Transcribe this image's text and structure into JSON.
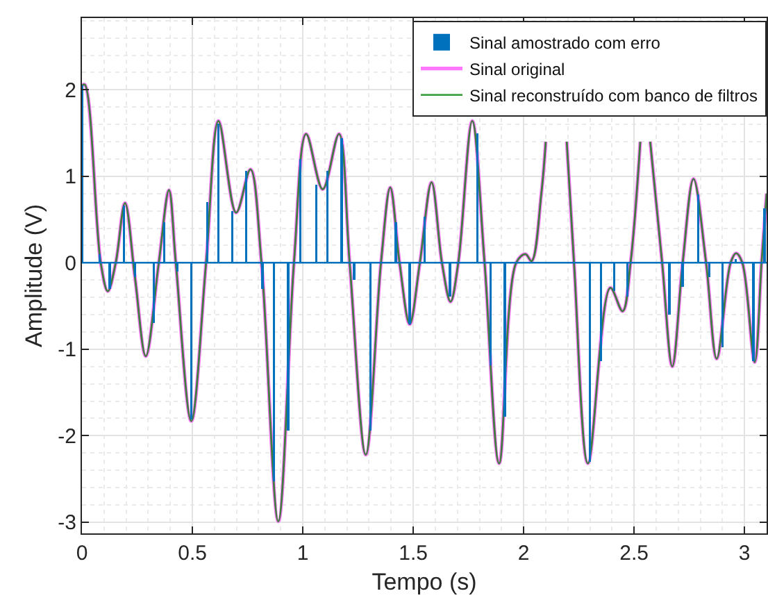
{
  "chart_data": {
    "type": "line",
    "xlabel": "Tempo (s)",
    "ylabel": "Amplitude (V)",
    "xlim": [
      0,
      3.1
    ],
    "xticks": [
      0,
      0.5,
      1,
      1.5,
      2,
      2.5,
      3
    ],
    "ylim": [
      -3.13,
      2.83
    ],
    "yticks": [
      -3,
      -2,
      -1,
      0,
      1,
      2
    ],
    "grid": true,
    "legend": "top right",
    "marker": "none",
    "line_style": "solid",
    "ref_lines": [
      {
        "axis": "y",
        "value": 0,
        "color": "#0072bd"
      }
    ],
    "series": [
      {
        "name": "Sinal amostrado com erro",
        "type": "bar",
        "color": "#0072bd",
        "x": [
          0,
          0.08,
          0.126,
          0.19,
          0.24,
          0.325,
          0.373,
          0.432,
          0.495,
          0.568,
          0.618,
          0.681,
          0.744,
          0.818,
          0.87,
          0.933,
          0.989,
          1.061,
          1.111,
          1.176,
          1.233,
          1.306,
          1.421,
          1.484,
          1.551,
          1.667,
          1.79,
          1.851,
          1.914,
          2.1,
          2.16,
          2.3,
          2.35,
          2.41,
          2.47,
          2.54,
          2.66,
          2.72,
          2.79,
          2.84,
          2.9,
          2.96,
          3.04,
          3.09
        ],
        "values": [
          2.05,
          0.1,
          -0.3,
          0.66,
          -0.17,
          -0.7,
          0.47,
          -0.1,
          -1.81,
          0.7,
          1.61,
          0.6,
          1.06,
          -0.3,
          -2.53,
          -1.94,
          1.2,
          0.9,
          1.06,
          1.44,
          -0.2,
          -1.94,
          0.47,
          -0.71,
          0.53,
          -0.39,
          1.5,
          -1.19,
          -1.78,
          null,
          null,
          -2.3,
          -1.14,
          -0.33,
          -0.39,
          null,
          -0.6,
          -0.28,
          0.79,
          -0.17,
          -0.98,
          0.04,
          -1.14,
          0.63
        ]
      },
      {
        "name": "Sinal original",
        "color": "#ff77ff",
        "x": [
          0,
          0.013,
          0.085,
          0.117,
          0.153,
          0.195,
          0.24,
          0.289,
          0.348,
          0.394,
          0.425,
          0.495,
          0.562,
          0.618,
          0.698,
          0.763,
          0.813,
          0.889,
          0.96,
          1.015,
          1.09,
          1.164,
          1.212,
          1.285,
          1.354,
          1.396,
          1.438,
          1.484,
          1.53,
          1.583,
          1.63,
          1.669,
          1.704,
          1.767,
          1.823,
          1.889,
          1.966,
          2.008,
          2.036,
          2.08,
          2.1,
          2.15,
          2.195,
          2.228,
          2.291,
          2.392,
          2.448,
          2.484,
          2.528,
          2.55,
          2.573,
          2.627,
          2.673,
          2.72,
          2.769,
          2.826,
          2.874,
          2.937,
          2.962,
          2.99,
          3.046,
          3.077,
          3.1
        ],
        "values": [
          2.05,
          2.06,
          0,
          -0.33,
          0,
          0.69,
          -0.17,
          -1.08,
          0,
          0.84,
          0,
          -1.83,
          0,
          1.64,
          0.58,
          1.08,
          0,
          -2.99,
          0,
          1.49,
          0.85,
          1.49,
          0,
          -2.22,
          0,
          0.87,
          0,
          -0.71,
          0,
          0.93,
          0,
          -0.45,
          0,
          1.64,
          0,
          -2.32,
          0,
          0.1,
          0.02,
          0.8,
          1.4,
          null,
          1.4,
          0,
          -2.32,
          -0.29,
          -0.56,
          0,
          1.4,
          null,
          1.4,
          0,
          -1.2,
          0,
          0.97,
          0,
          -1.11,
          0,
          0.11,
          0,
          -1.15,
          0,
          0.8
        ]
      },
      {
        "name": "Sinal reconstruído com banco de filtros",
        "color": "#008000",
        "x": [
          0,
          0.013,
          0.085,
          0.117,
          0.153,
          0.195,
          0.24,
          0.289,
          0.348,
          0.394,
          0.425,
          0.495,
          0.562,
          0.618,
          0.698,
          0.763,
          0.813,
          0.889,
          0.96,
          1.015,
          1.09,
          1.164,
          1.212,
          1.285,
          1.354,
          1.396,
          1.438,
          1.484,
          1.53,
          1.583,
          1.63,
          1.669,
          1.704,
          1.767,
          1.823,
          1.889,
          1.966,
          2.008,
          2.036,
          2.08,
          2.1,
          2.15,
          2.195,
          2.228,
          2.291,
          2.392,
          2.448,
          2.484,
          2.528,
          2.55,
          2.573,
          2.627,
          2.673,
          2.72,
          2.769,
          2.826,
          2.874,
          2.937,
          2.962,
          2.99,
          3.046,
          3.077,
          3.1
        ],
        "values": [
          2.05,
          2.06,
          0,
          -0.33,
          0,
          0.69,
          -0.17,
          -1.08,
          0,
          0.84,
          0,
          -1.83,
          0,
          1.64,
          0.58,
          1.08,
          0,
          -2.99,
          0,
          1.49,
          0.85,
          1.49,
          0,
          -2.22,
          0,
          0.87,
          0,
          -0.71,
          0,
          0.93,
          0,
          -0.45,
          0,
          1.64,
          0,
          -2.32,
          0,
          0.1,
          0.02,
          0.8,
          1.4,
          null,
          1.4,
          0,
          -2.32,
          -0.29,
          -0.56,
          0,
          1.4,
          null,
          1.4,
          0,
          -1.2,
          0,
          0.97,
          0,
          -1.11,
          0,
          0.11,
          0,
          -1.15,
          0,
          0.8
        ]
      }
    ]
  }
}
